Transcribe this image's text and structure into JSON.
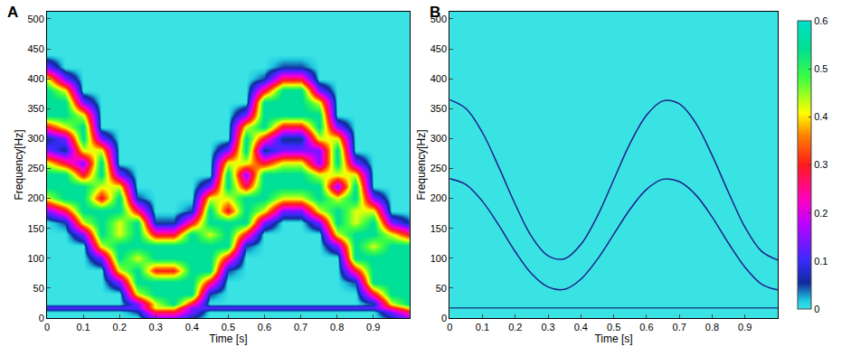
{
  "chart_data": [
    {
      "type": "heatmap",
      "panel": "A",
      "x_label": "Time [s]",
      "y_label": "Frequency[Hz]",
      "x": [
        0,
        0.05,
        0.1,
        0.15,
        0.2,
        0.25,
        0.3,
        0.35,
        0.4,
        0.45,
        0.5,
        0.55,
        0.6,
        0.65,
        0.7,
        0.75,
        0.8,
        0.85,
        0.9,
        0.95,
        1
      ],
      "y": [
        0,
        10,
        17,
        24,
        40,
        60,
        80,
        100,
        120,
        140,
        160,
        180,
        200,
        220,
        240,
        260,
        280,
        300,
        320,
        340,
        360,
        380,
        400,
        420,
        440,
        460,
        480,
        500
      ],
      "cells": [
        [
          0,
          0,
          0,
          0,
          0,
          0,
          0.14,
          0.14,
          0.05,
          0,
          0,
          0,
          0,
          0,
          0,
          0,
          0,
          0,
          0,
          0.05,
          0.14
        ],
        [
          0,
          0,
          0,
          0,
          0,
          0.05,
          0.28,
          0.28,
          0.14,
          0,
          0,
          0,
          0,
          0,
          0,
          0,
          0,
          0,
          0,
          0.14,
          0.28
        ],
        [
          0.12,
          0.12,
          0.12,
          0.12,
          0.12,
          0.12,
          0.42,
          0.42,
          0.14,
          0.12,
          0.12,
          0.12,
          0.12,
          0.12,
          0.12,
          0.12,
          0.12,
          0.12,
          0.12,
          0.28,
          0.42
        ],
        [
          0,
          0,
          0,
          0,
          0,
          0.14,
          0.42,
          0.55,
          0.28,
          0,
          0,
          0,
          0,
          0,
          0,
          0,
          0,
          0,
          0.05,
          0.42,
          0.55
        ],
        [
          0,
          0,
          0,
          0,
          0,
          0.42,
          0.55,
          0.55,
          0.55,
          0.05,
          0,
          0,
          0,
          0,
          0,
          0,
          0,
          0,
          0.28,
          0.55,
          0.55
        ],
        [
          0,
          0,
          0,
          0,
          0.14,
          0.55,
          0.55,
          0.55,
          0.55,
          0.28,
          0,
          0,
          0,
          0,
          0,
          0,
          0,
          0.05,
          0.55,
          0.55,
          0.55
        ],
        [
          0,
          0,
          0,
          0,
          0.42,
          0.55,
          0.3,
          0.3,
          0.55,
          0.55,
          0.05,
          0,
          0,
          0,
          0,
          0,
          0,
          0.28,
          0.55,
          0.55,
          0.55
        ],
        [
          0,
          0,
          0,
          0.14,
          0.55,
          0.42,
          0.55,
          0.55,
          0.55,
          0.55,
          0.28,
          0,
          0,
          0,
          0,
          0,
          0,
          0.55,
          0.55,
          0.55,
          0.55
        ],
        [
          0,
          0,
          0,
          0.42,
          0.55,
          0.55,
          0.55,
          0.55,
          0.55,
          0.55,
          0.55,
          0.05,
          0,
          0,
          0,
          0,
          0.14,
          0.55,
          0.42,
          0.55,
          0.55
        ],
        [
          0,
          0,
          0.14,
          0.55,
          0.42,
          0.55,
          0.28,
          0.28,
          0.55,
          0.42,
          0.55,
          0.28,
          0,
          0,
          0,
          0,
          0.42,
          0.55,
          0.55,
          0.42,
          0.28
        ],
        [
          0,
          0.05,
          0.42,
          0.55,
          0.42,
          0.55,
          0.05,
          0.05,
          0.28,
          0.55,
          0.55,
          0.55,
          0.14,
          0,
          0,
          0.14,
          0.55,
          0.42,
          0.55,
          0.14,
          0.05
        ],
        [
          0.14,
          0.28,
          0.55,
          0.55,
          0.55,
          0.28,
          0,
          0,
          0.05,
          0.55,
          0.28,
          0.55,
          0.42,
          0.14,
          0.14,
          0.42,
          0.55,
          0.42,
          0.42,
          0,
          0
        ],
        [
          0.42,
          0.55,
          0.55,
          0.28,
          0.55,
          0.05,
          0,
          0,
          0,
          0.42,
          0.42,
          0.55,
          0.55,
          0.42,
          0.42,
          0.55,
          0.42,
          0.55,
          0.14,
          0,
          0
        ],
        [
          0.55,
          0.55,
          0.55,
          0.42,
          0.42,
          0,
          0,
          0,
          0,
          0.14,
          0.55,
          0.28,
          0.55,
          0.55,
          0.55,
          0.55,
          0.14,
          0.55,
          0,
          0,
          0
        ],
        [
          0.55,
          0.55,
          0.28,
          0.55,
          0.14,
          0,
          0,
          0,
          0,
          0,
          0.55,
          0.14,
          0.55,
          0.55,
          0.55,
          0.42,
          0.42,
          0.42,
          0,
          0,
          0
        ],
        [
          0.42,
          0.28,
          0.14,
          0.55,
          0,
          0,
          0,
          0,
          0,
          0,
          0.42,
          0.42,
          0.28,
          0.42,
          0.42,
          0.14,
          0.55,
          0.14,
          0,
          0,
          0
        ],
        [
          0.14,
          0.05,
          0.42,
          0.42,
          0,
          0,
          0,
          0,
          0,
          0,
          0.14,
          0.55,
          0.05,
          0.14,
          0.14,
          0.14,
          0.55,
          0,
          0,
          0,
          0
        ],
        [
          0.05,
          0.14,
          0.55,
          0.14,
          0,
          0,
          0,
          0,
          0,
          0,
          0,
          0.55,
          0.28,
          0.05,
          0.05,
          0.42,
          0.42,
          0,
          0,
          0,
          0
        ],
        [
          0.28,
          0.42,
          0.55,
          0,
          0,
          0,
          0,
          0,
          0,
          0,
          0,
          0.42,
          0.55,
          0.28,
          0.28,
          0.55,
          0.14,
          0,
          0,
          0,
          0
        ],
        [
          0.55,
          0.55,
          0.42,
          0,
          0,
          0,
          0,
          0,
          0,
          0,
          0,
          0.14,
          0.55,
          0.55,
          0.55,
          0.55,
          0,
          0,
          0,
          0,
          0
        ],
        [
          0.55,
          0.55,
          0.14,
          0,
          0,
          0,
          0,
          0,
          0,
          0,
          0,
          0,
          0.55,
          0.55,
          0.55,
          0.42,
          0,
          0,
          0,
          0,
          0
        ],
        [
          0.55,
          0.42,
          0,
          0,
          0,
          0,
          0,
          0,
          0,
          0,
          0,
          0,
          0.28,
          0.55,
          0.55,
          0.14,
          0,
          0,
          0,
          0,
          0
        ],
        [
          0.42,
          0.14,
          0,
          0,
          0,
          0,
          0,
          0,
          0,
          0,
          0,
          0,
          0.05,
          0.28,
          0.28,
          0,
          0,
          0,
          0,
          0,
          0
        ],
        [
          0.14,
          0,
          0,
          0,
          0,
          0,
          0,
          0,
          0,
          0,
          0,
          0,
          0,
          0.05,
          0.05,
          0,
          0,
          0,
          0,
          0,
          0
        ],
        [
          0,
          0,
          0,
          0,
          0,
          0,
          0,
          0,
          0,
          0,
          0,
          0,
          0,
          0,
          0,
          0,
          0,
          0,
          0,
          0,
          0
        ],
        [
          0,
          0,
          0,
          0,
          0,
          0,
          0,
          0,
          0,
          0,
          0,
          0,
          0,
          0,
          0,
          0,
          0,
          0,
          0,
          0,
          0
        ],
        [
          0,
          0,
          0,
          0,
          0,
          0,
          0,
          0,
          0,
          0,
          0,
          0,
          0,
          0,
          0,
          0,
          0,
          0,
          0,
          0,
          0
        ],
        [
          0,
          0,
          0,
          0,
          0,
          0,
          0,
          0,
          0,
          0,
          0,
          0,
          0,
          0,
          0,
          0,
          0,
          0,
          0,
          0,
          0
        ]
      ],
      "xlim": [
        0,
        1
      ],
      "xticks": [
        0,
        0.1,
        0.2,
        0.3,
        0.4,
        0.5,
        0.6,
        0.7,
        0.8,
        0.9
      ],
      "ylim": [
        0,
        512
      ],
      "yticks": [
        0,
        50,
        100,
        150,
        200,
        250,
        300,
        350,
        400,
        450,
        500
      ],
      "colorbar": {
        "range": [
          0,
          0.6
        ],
        "ticks": [
          0,
          0.1,
          0.2,
          0.3,
          0.4,
          0.5,
          0.6
        ]
      }
    },
    {
      "type": "line",
      "panel": "B",
      "x_label": "Time [s]",
      "y_label": "Frequency[Hz]",
      "series": [
        {
          "color": "#1e1e8c",
          "x": [
            0,
            0.05,
            0.1,
            0.15,
            0.2,
            0.25,
            0.3,
            0.35,
            0.4,
            0.45,
            0.5,
            0.55,
            0.6,
            0.65,
            0.7,
            0.75,
            0.8,
            0.85,
            0.9,
            0.95,
            1
          ],
          "values": [
            365,
            350,
            310,
            252,
            190,
            136,
            104,
            99,
            123,
            170,
            231,
            292,
            339,
            363,
            358,
            326,
            272,
            210,
            152,
            112,
            97
          ]
        },
        {
          "color": "#1e1e8c",
          "x": [
            0,
            0.05,
            0.1,
            0.15,
            0.2,
            0.25,
            0.3,
            0.35,
            0.4,
            0.45,
            0.5,
            0.55,
            0.6,
            0.65,
            0.7,
            0.75,
            0.8,
            0.85,
            0.9,
            0.95,
            1
          ],
          "values": [
            233,
            223,
            195,
            155,
            111,
            74,
            52,
            48,
            65,
            98,
            140,
            182,
            215,
            232,
            228,
            206,
            169,
            125,
            85,
            57,
            47
          ]
        },
        {
          "color": "#1a4f8f",
          "x": [
            0,
            1
          ],
          "values": [
            17,
            17
          ]
        }
      ],
      "xlim": [
        0,
        1
      ],
      "xticks": [
        0,
        0.1,
        0.2,
        0.3,
        0.4,
        0.5,
        0.6,
        0.7,
        0.8,
        0.9
      ],
      "ylim": [
        0,
        512
      ],
      "yticks": [
        0,
        50,
        100,
        150,
        200,
        250,
        300,
        350,
        400,
        450,
        500
      ]
    }
  ]
}
